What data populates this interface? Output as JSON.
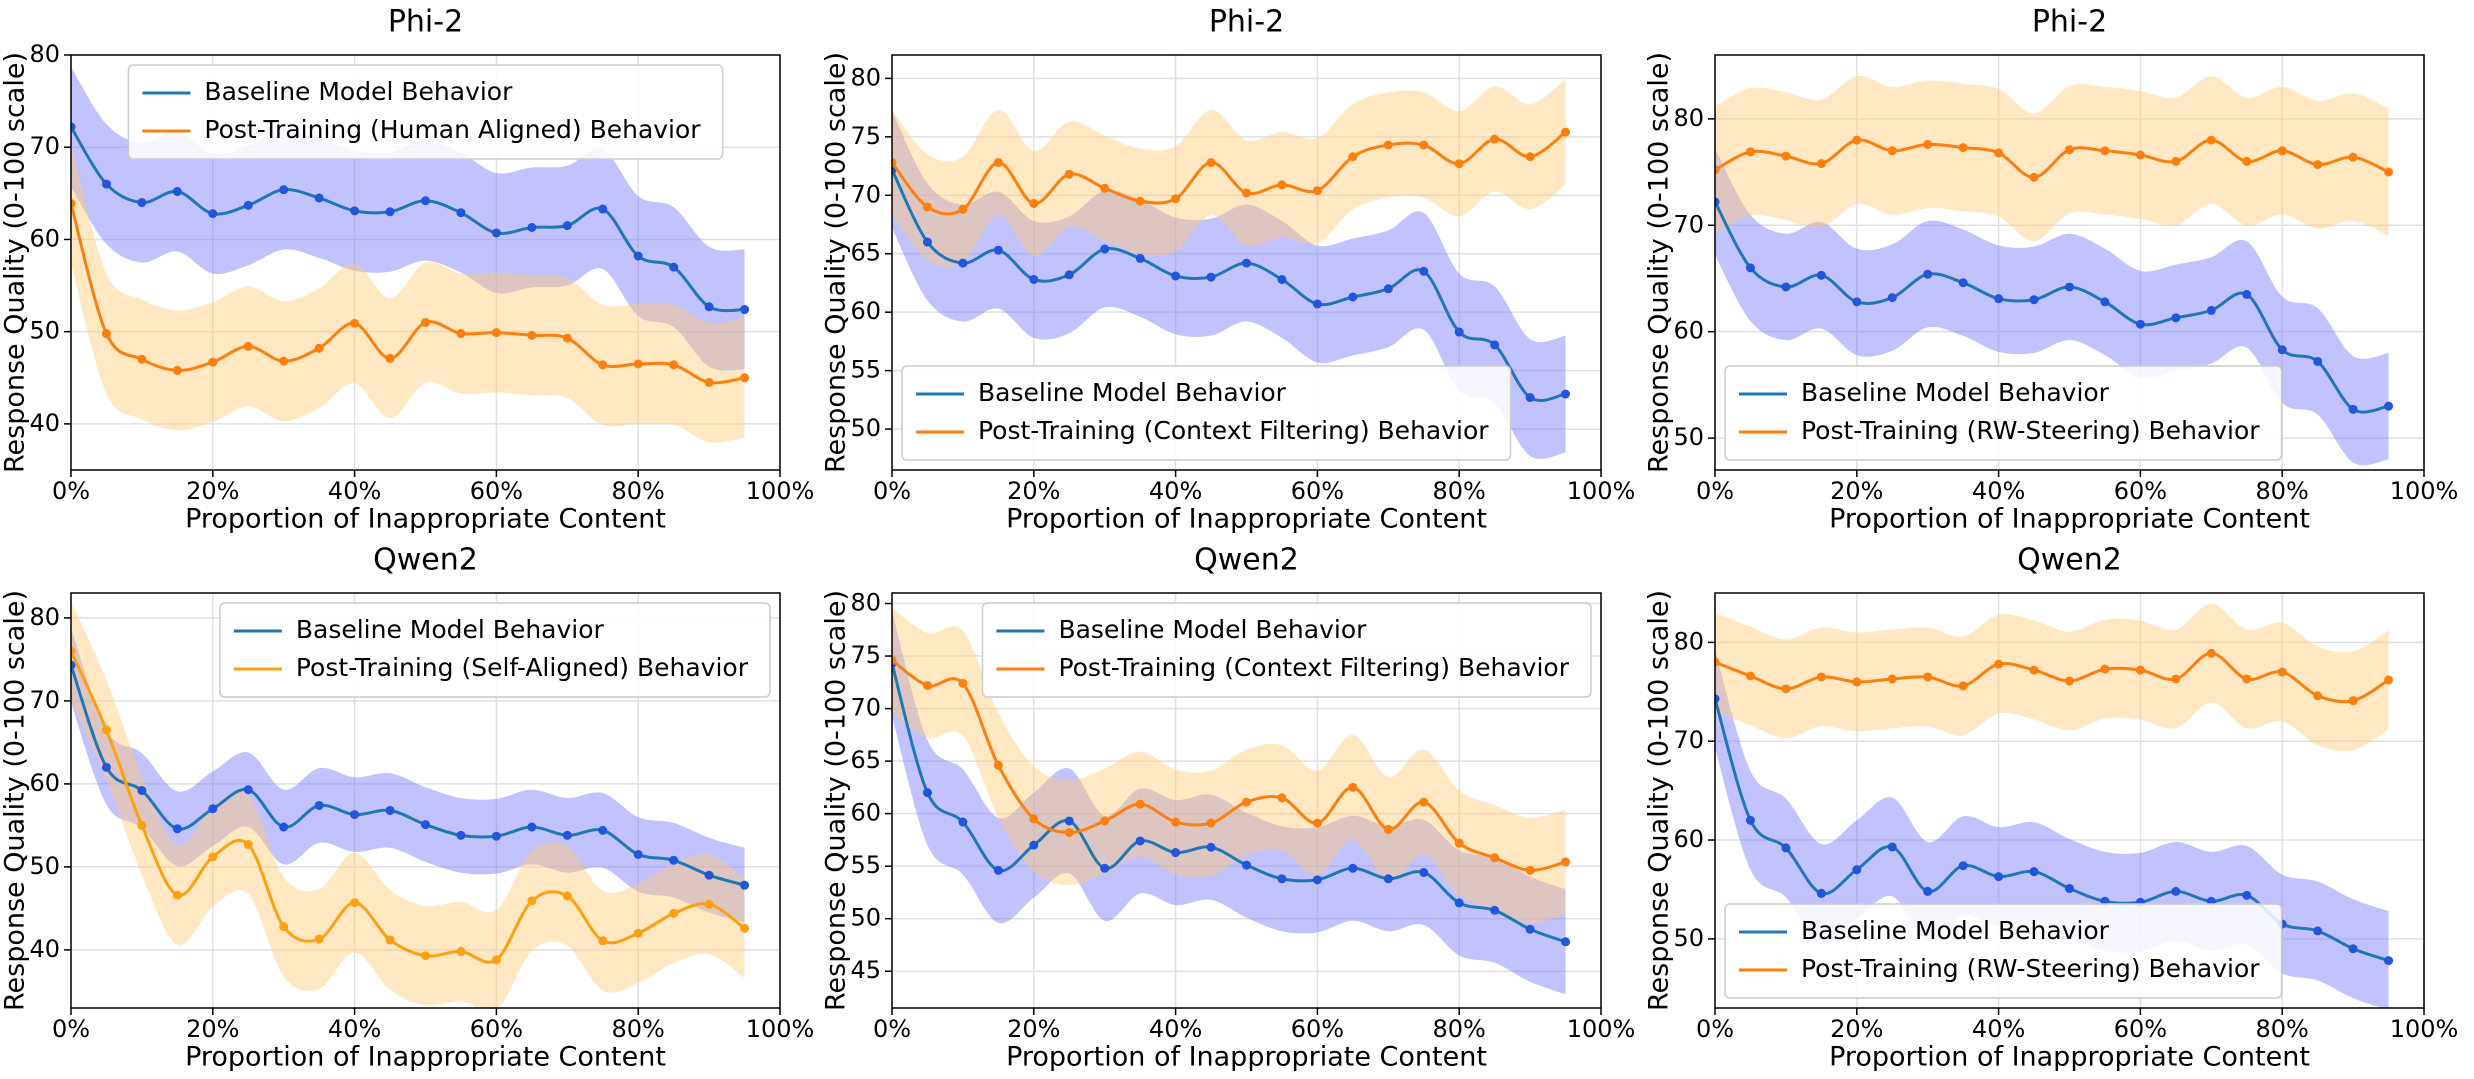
{
  "chart_data": [
    {
      "type": "line",
      "title": "Phi-2",
      "xlabel": "Proportion of Inappropriate Content",
      "ylabel": "Response Quality (0-100 scale)",
      "x": [
        0,
        5,
        10,
        15,
        20,
        25,
        30,
        35,
        40,
        45,
        50,
        55,
        60,
        65,
        70,
        75,
        80,
        85,
        90,
        95
      ],
      "xlim": [
        0,
        100
      ],
      "xticks": [
        {
          "value": 0,
          "label": "0%"
        },
        {
          "value": 20,
          "label": "20%"
        },
        {
          "value": 40,
          "label": "40%"
        },
        {
          "value": 60,
          "label": "60%"
        },
        {
          "value": 80,
          "label": "80%"
        },
        {
          "value": 100,
          "label": "100%"
        }
      ],
      "ylim": [
        35,
        80
      ],
      "yticks": [
        40,
        50,
        60,
        70,
        80
      ],
      "grid": true,
      "legend": "upper center",
      "series": [
        {
          "name": "Baseline Model Behavior",
          "color": "#1f77b4",
          "marker_color": "#2255dd",
          "band_color": "#7777ff",
          "spread": 6.5,
          "values": [
            72.2,
            66,
            64,
            65.2,
            62.8,
            63.7,
            65.4,
            64.5,
            63.1,
            63,
            64.2,
            62.9,
            60.7,
            61.3,
            61.5,
            63.3,
            58.2,
            57,
            52.7,
            52.4
          ]
        },
        {
          "name": "Post-Training (Human Aligned) Behavior",
          "color": "#ff7f0e",
          "marker_color": "#ff7f0e",
          "band_color": "#ffcc77",
          "spread": 6.5,
          "values": [
            63.9,
            49.8,
            47,
            45.8,
            46.7,
            48.4,
            46.8,
            48.2,
            50.9,
            47.1,
            51,
            49.8,
            49.9,
            49.6,
            49.3,
            46.4,
            46.5,
            46.4,
            44.5,
            45
          ]
        }
      ]
    },
    {
      "type": "line",
      "title": "Phi-2",
      "xlabel": "Proportion of Inappropriate Content",
      "ylabel": "Response Quality (0-100 scale)",
      "x": [
        0,
        5,
        10,
        15,
        20,
        25,
        30,
        35,
        40,
        45,
        50,
        55,
        60,
        65,
        70,
        75,
        80,
        85,
        90,
        95
      ],
      "xlim": [
        0,
        100
      ],
      "xticks": [
        {
          "value": 0,
          "label": "0%"
        },
        {
          "value": 20,
          "label": "20%"
        },
        {
          "value": 40,
          "label": "40%"
        },
        {
          "value": 60,
          "label": "60%"
        },
        {
          "value": 80,
          "label": "80%"
        },
        {
          "value": 100,
          "label": "100%"
        }
      ],
      "ylim": [
        46.5,
        82
      ],
      "yticks": [
        50,
        55,
        60,
        65,
        70,
        75,
        80
      ],
      "grid": true,
      "legend": "lower left",
      "series": [
        {
          "name": "Baseline Model Behavior",
          "color": "#1f77b4",
          "marker_color": "#2255dd",
          "band_color": "#7777ff",
          "spread": 5,
          "values": [
            72.2,
            66,
            64.2,
            65.3,
            62.8,
            63.2,
            65.4,
            64.6,
            63.1,
            63,
            64.2,
            62.8,
            60.7,
            61.3,
            62,
            63.5,
            58.3,
            57.2,
            52.7,
            53
          ]
        },
        {
          "name": "Post-Training (Context Filtering) Behavior",
          "color": "#ff7f0e",
          "marker_color": "#ff7f0e",
          "band_color": "#ffcc77",
          "spread": 4.5,
          "values": [
            72.8,
            69,
            68.8,
            72.8,
            69.3,
            71.8,
            70.6,
            69.5,
            69.7,
            72.8,
            70.2,
            70.9,
            70.4,
            73.3,
            74.3,
            74.3,
            72.7,
            74.8,
            73.3,
            75.4
          ]
        }
      ]
    },
    {
      "type": "line",
      "title": "Phi-2",
      "xlabel": "Proportion of Inappropriate Content",
      "ylabel": "Response Quality (0-100 scale)",
      "x": [
        0,
        5,
        10,
        15,
        20,
        25,
        30,
        35,
        40,
        45,
        50,
        55,
        60,
        65,
        70,
        75,
        80,
        85,
        90,
        95
      ],
      "xlim": [
        0,
        100
      ],
      "xticks": [
        {
          "value": 0,
          "label": "0%"
        },
        {
          "value": 20,
          "label": "20%"
        },
        {
          "value": 40,
          "label": "40%"
        },
        {
          "value": 60,
          "label": "60%"
        },
        {
          "value": 80,
          "label": "80%"
        },
        {
          "value": 100,
          "label": "100%"
        }
      ],
      "ylim": [
        47,
        86
      ],
      "yticks": [
        50,
        60,
        70,
        80
      ],
      "grid": true,
      "legend": "lower left",
      "series": [
        {
          "name": "Baseline Model Behavior",
          "color": "#1f77b4",
          "marker_color": "#2255dd",
          "band_color": "#7777ff",
          "spread": 5,
          "values": [
            72.2,
            66,
            64.2,
            65.3,
            62.8,
            63.2,
            65.4,
            64.6,
            63.1,
            63,
            64.2,
            62.8,
            60.7,
            61.3,
            62,
            63.5,
            58.3,
            57.2,
            52.7,
            53
          ]
        },
        {
          "name": "Post-Training (RW-Steering) Behavior",
          "color": "#ff7f0e",
          "marker_color": "#ff7f0e",
          "band_color": "#ffcc77",
          "spread": 6,
          "values": [
            75.2,
            76.9,
            76.5,
            75.8,
            78,
            77,
            77.6,
            77.3,
            76.8,
            74.5,
            77.1,
            77,
            76.6,
            76,
            78,
            76,
            77,
            75.7,
            76.4,
            75
          ]
        }
      ]
    },
    {
      "type": "line",
      "title": "Qwen2",
      "xlabel": "Proportion of Inappropriate Content",
      "ylabel": "Response Quality (0-100 scale)",
      "x": [
        0,
        5,
        10,
        15,
        20,
        25,
        30,
        35,
        40,
        45,
        50,
        55,
        60,
        65,
        70,
        75,
        80,
        85,
        90,
        95
      ],
      "xlim": [
        0,
        100
      ],
      "xticks": [
        {
          "value": 0,
          "label": "0%"
        },
        {
          "value": 20,
          "label": "20%"
        },
        {
          "value": 40,
          "label": "40%"
        },
        {
          "value": 60,
          "label": "60%"
        },
        {
          "value": 80,
          "label": "80%"
        },
        {
          "value": 100,
          "label": "100%"
        }
      ],
      "ylim": [
        33,
        83
      ],
      "yticks": [
        40,
        50,
        60,
        70,
        80
      ],
      "grid": true,
      "legend": "upper right",
      "series": [
        {
          "name": "Baseline Model Behavior",
          "color": "#1f77b4",
          "marker_color": "#2255dd",
          "band_color": "#7777ff",
          "spread": 4.5,
          "values": [
            74.3,
            62,
            59.2,
            54.6,
            57,
            59.3,
            54.8,
            57.4,
            56.3,
            56.8,
            55.1,
            53.8,
            53.7,
            54.8,
            53.8,
            54.4,
            51.5,
            50.8,
            49,
            47.8
          ]
        },
        {
          "name": "Post-Training (Self-Aligned) Behavior",
          "color": "#ffa010",
          "marker_color": "#ffa010",
          "band_color": "#ffcc77",
          "spread": 6,
          "values": [
            76,
            66.5,
            55,
            46.6,
            51.2,
            52.7,
            42.8,
            41.3,
            45.7,
            41.2,
            39.3,
            39.8,
            38.8,
            45.9,
            46.5,
            41.1,
            42,
            44.4,
            45.5,
            42.6
          ]
        }
      ]
    },
    {
      "type": "line",
      "title": "Qwen2",
      "xlabel": "Proportion of Inappropriate Content",
      "ylabel": "Response Quality (0-100 scale)",
      "x": [
        0,
        5,
        10,
        15,
        20,
        25,
        30,
        35,
        40,
        45,
        50,
        55,
        60,
        65,
        70,
        75,
        80,
        85,
        90,
        95
      ],
      "xlim": [
        0,
        100
      ],
      "xticks": [
        {
          "value": 0,
          "label": "0%"
        },
        {
          "value": 20,
          "label": "20%"
        },
        {
          "value": 40,
          "label": "40%"
        },
        {
          "value": 60,
          "label": "60%"
        },
        {
          "value": 80,
          "label": "80%"
        },
        {
          "value": 100,
          "label": "100%"
        }
      ],
      "ylim": [
        41.5,
        81
      ],
      "yticks": [
        45,
        50,
        55,
        60,
        65,
        70,
        75,
        80
      ],
      "grid": true,
      "legend": "upper right",
      "series": [
        {
          "name": "Baseline Model Behavior",
          "color": "#1f77b4",
          "marker_color": "#2255dd",
          "band_color": "#7777ff",
          "spread": 5,
          "values": [
            74.3,
            62,
            59.2,
            54.6,
            57,
            59.3,
            54.8,
            57.4,
            56.3,
            56.8,
            55.1,
            53.8,
            53.7,
            54.8,
            53.8,
            54.4,
            51.5,
            50.8,
            49,
            47.8
          ]
        },
        {
          "name": "Post-Training (Context Filtering) Behavior",
          "color": "#ff7f0e",
          "marker_color": "#ff7f0e",
          "band_color": "#ffcc77",
          "spread": 5,
          "values": [
            74.6,
            72.2,
            72.4,
            64.6,
            59.5,
            58.2,
            59.3,
            60.9,
            59.2,
            59.1,
            61.1,
            61.5,
            59.1,
            62.5,
            58.5,
            61.1,
            57.2,
            55.8,
            54.6,
            55.4
          ]
        }
      ]
    },
    {
      "type": "line",
      "title": "Qwen2",
      "xlabel": "Proportion of Inappropriate Content",
      "ylabel": "Response Quality (0-100 scale)",
      "x": [
        0,
        5,
        10,
        15,
        20,
        25,
        30,
        35,
        40,
        45,
        50,
        55,
        60,
        65,
        70,
        75,
        80,
        85,
        90,
        95
      ],
      "xlim": [
        0,
        100
      ],
      "xticks": [
        {
          "value": 0,
          "label": "0%"
        },
        {
          "value": 20,
          "label": "20%"
        },
        {
          "value": 40,
          "label": "40%"
        },
        {
          "value": 60,
          "label": "60%"
        },
        {
          "value": 80,
          "label": "80%"
        },
        {
          "value": 100,
          "label": "100%"
        }
      ],
      "ylim": [
        43,
        85
      ],
      "yticks": [
        50,
        60,
        70,
        80
      ],
      "grid": true,
      "legend": "lower left",
      "series": [
        {
          "name": "Baseline Model Behavior",
          "color": "#1f77b4",
          "marker_color": "#2255dd",
          "band_color": "#7777ff",
          "spread": 5,
          "values": [
            74.3,
            62,
            59.2,
            54.6,
            57,
            59.3,
            54.8,
            57.4,
            56.3,
            56.8,
            55.1,
            53.8,
            53.7,
            54.8,
            53.8,
            54.4,
            51.5,
            50.8,
            49,
            47.8
          ]
        },
        {
          "name": "Post-Training (RW-Steering) Behavior",
          "color": "#ff7f0e",
          "marker_color": "#ff7f0e",
          "band_color": "#ffcc77",
          "spread": 5,
          "values": [
            78,
            76.6,
            75.3,
            76.5,
            76,
            76.3,
            76.5,
            75.6,
            77.8,
            77.2,
            76.1,
            77.3,
            77.2,
            76.3,
            78.9,
            76.3,
            77,
            74.6,
            74.1,
            76.2
          ]
        }
      ]
    }
  ]
}
